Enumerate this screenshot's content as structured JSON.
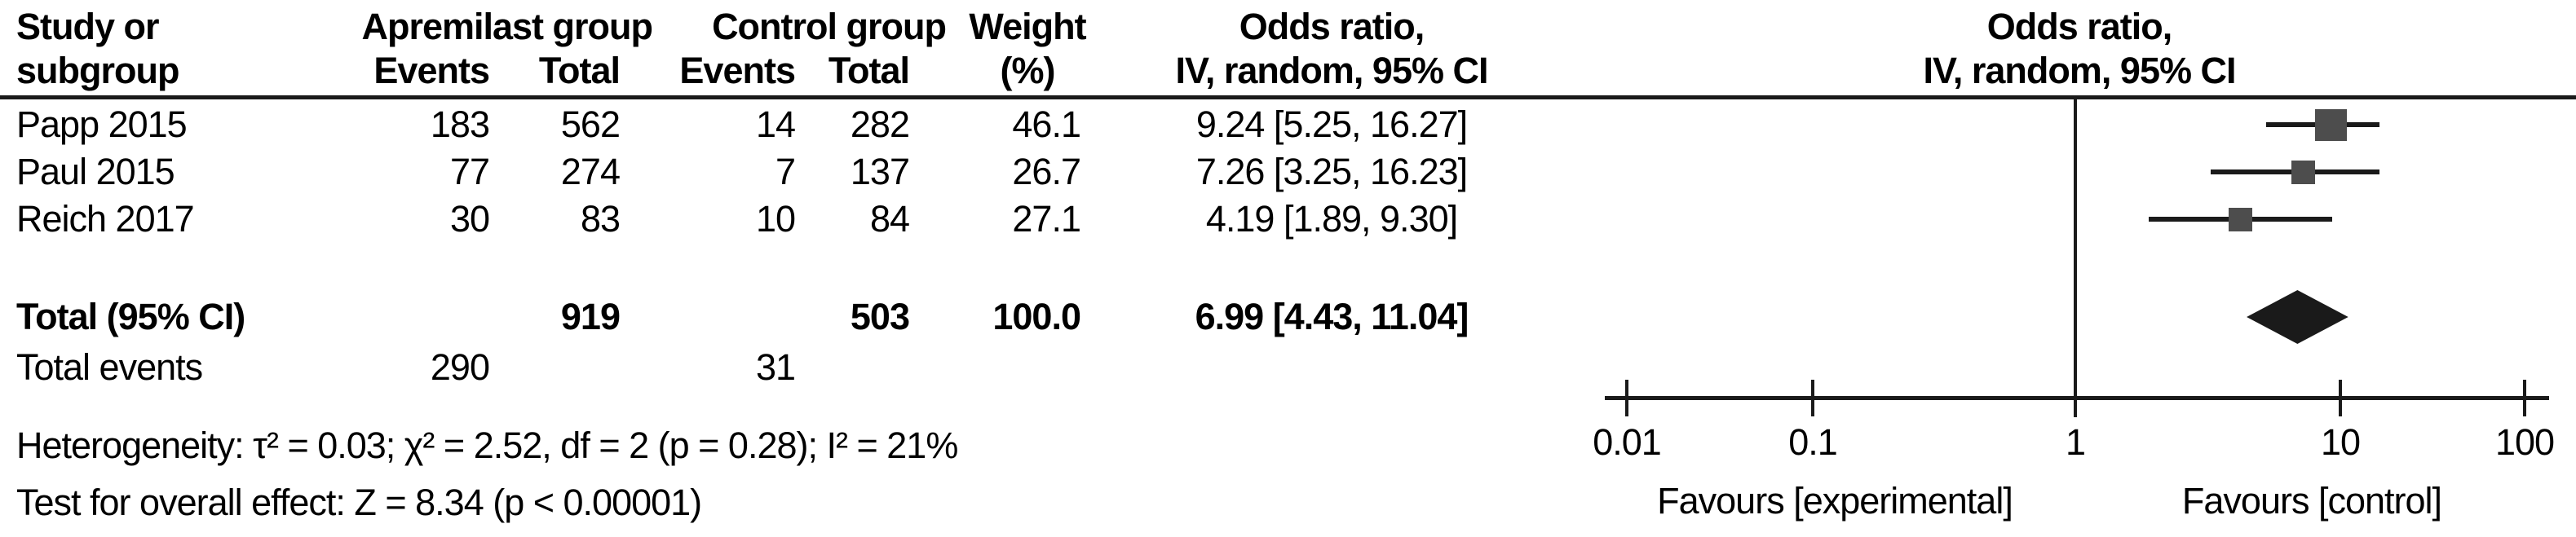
{
  "header": {
    "study_line1": "Study or",
    "study_line2": "subgroup",
    "apremilast_group": "Apremilast group",
    "control_group": "Control group",
    "events": "Events",
    "total": "Total",
    "weight_line1": "Weight",
    "weight_line2": "(%)",
    "or_line1": "Odds ratio,",
    "or_line2": "IV, random, 95% CI",
    "plot_or_line1": "Odds ratio,",
    "plot_or_line2": "IV, random, 95% CI"
  },
  "chart_data": {
    "type": "forest-plot",
    "effect_measure": "Odds ratio, IV, random, 95% CI",
    "studies": [
      {
        "name": "Papp 2015",
        "events_apremilast": "183",
        "total_apremilast": "562",
        "events_control": "14",
        "total_control": "282",
        "weight_pct": "46.1",
        "weight": 46.1,
        "or": 9.24,
        "ci_low": 5.25,
        "ci_high": 16.27,
        "or_text": "9.24 [5.25, 16.27]"
      },
      {
        "name": "Paul 2015",
        "events_apremilast": "77",
        "total_apremilast": "274",
        "events_control": "7",
        "total_control": "137",
        "weight_pct": "26.7",
        "weight": 26.7,
        "or": 7.26,
        "ci_low": 3.25,
        "ci_high": 16.23,
        "or_text": "7.26 [3.25, 16.23]"
      },
      {
        "name": "Reich 2017",
        "events_apremilast": "30",
        "total_apremilast": "83",
        "events_control": "10",
        "total_control": "84",
        "weight_pct": "27.1",
        "weight": 27.1,
        "or": 4.19,
        "ci_low": 1.89,
        "ci_high": 9.3,
        "or_text": "4.19 [1.89, 9.30]"
      }
    ],
    "total": {
      "label": "Total (95% CI)",
      "total_apremilast": "919",
      "total_control": "503",
      "weight_pct": "100.0",
      "or": 6.99,
      "ci_low": 4.43,
      "ci_high": 11.04,
      "or_text": "6.99 [4.43, 11.04]"
    },
    "total_events": {
      "label": "Total events",
      "events_apremilast": "290",
      "events_control": "31"
    },
    "heterogeneity": "Heterogeneity: τ² = 0.03; χ² = 2.52, df = 2 (p = 0.28); I² = 21%",
    "overall_effect": "Test for overall effect: Z = 8.34 (p < 0.00001)",
    "axis": {
      "scale": "log",
      "ticks": [
        0.01,
        0.1,
        1,
        10,
        100
      ],
      "tick_labels": [
        "0.01",
        "0.1",
        "1",
        "10",
        "100"
      ],
      "center_value": 1,
      "favours_left": "Favours [experimental]",
      "favours_right": "Favours [control]"
    },
    "colors": {
      "square": "#4d4d4d",
      "diamond": "#1a1a1a",
      "line": "#1a1a1a",
      "text": "#000000",
      "background": "#ffffff"
    }
  }
}
